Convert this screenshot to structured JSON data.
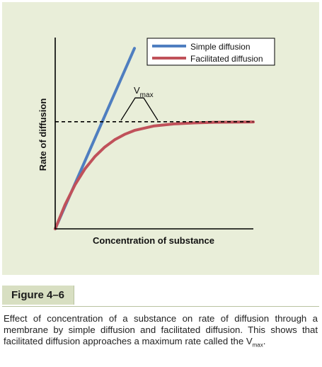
{
  "figure": {
    "label": "Figure 4–6",
    "caption_main": "Effect of concentration of a substance on rate of diffusion through a membrane by simple diffusion and facilitated diffusion. This shows that facilitated diffusion approaches a maximum rate called the V",
    "caption_sub": "max",
    "caption_end": ".",
    "panel_color": "#e9eed9"
  },
  "chart_data": {
    "type": "line",
    "title": "",
    "xlabel": "Concentration of substance",
    "ylabel": "Rate of diffusion",
    "xlim": [
      0,
      10
    ],
    "ylim": [
      0,
      10
    ],
    "grid": false,
    "axis_ticks": false,
    "legend_position": "top-right",
    "annotation": {
      "label": "V",
      "label_sub": "max",
      "value": 5.4,
      "style": "dashed"
    },
    "series": [
      {
        "name": "Simple diffusion",
        "color": "#4f7ec0",
        "x": [
          0,
          4.0
        ],
        "y": [
          0,
          9.1
        ]
      },
      {
        "name": "Facilitated diffusion",
        "color": "#c0515a",
        "x": [
          0,
          0.5,
          1,
          1.5,
          2,
          2.5,
          3,
          3.5,
          4,
          5,
          6,
          7,
          8,
          9,
          10
        ],
        "y": [
          0,
          1.22,
          2.22,
          3.02,
          3.64,
          4.12,
          4.49,
          4.76,
          4.96,
          5.19,
          5.29,
          5.34,
          5.37,
          5.38,
          5.39
        ]
      }
    ]
  }
}
